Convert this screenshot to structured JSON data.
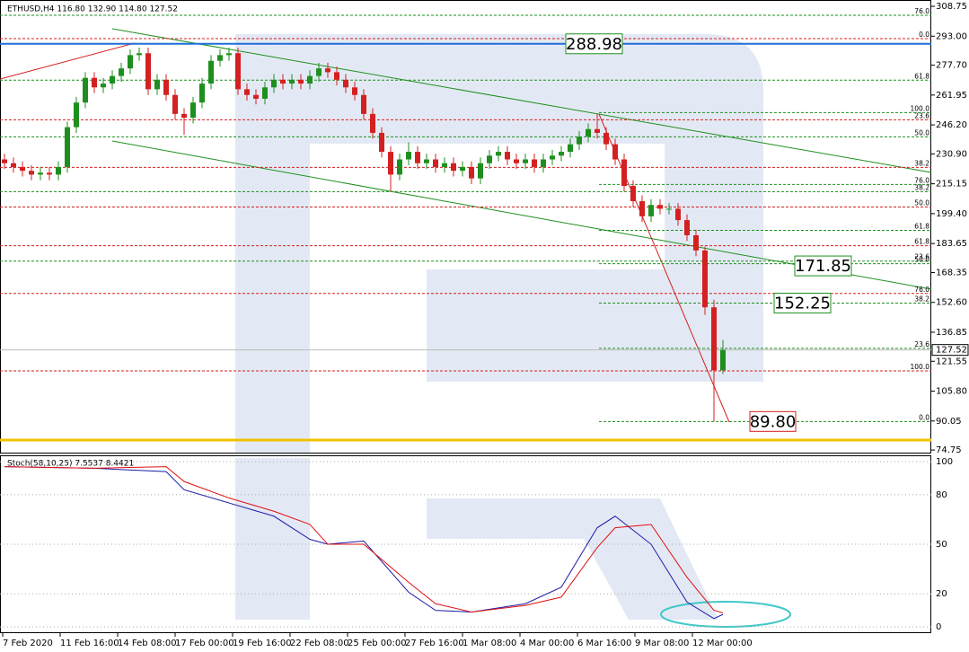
{
  "chart_data": [
    {
      "type": "candlestick",
      "title": "ETHUSD,H4 116.80 132.90 114.80 127.52",
      "up_color": "#1e8f1e",
      "down_color": "#d42020",
      "ylim": [
        72.9,
        311.6
      ],
      "yticks": [
        308.75,
        {
          "value": 293,
          "label": "293.00"
        },
        {
          "value": 277.7,
          "label": "277.70"
        },
        261.95,
        {
          "value": 246.2,
          "label": "246.20"
        },
        {
          "value": 230.9,
          "label": "230.90"
        },
        215.15,
        {
          "value": 199.4,
          "label": "199.40"
        },
        183.65,
        168.35,
        {
          "value": 152.6,
          "label": "152.60"
        },
        136.85,
        121.55,
        {
          "value": 105.8,
          "label": "105.80"
        },
        90.05,
        74.75
      ],
      "last_price": 127.52,
      "ohlc": [
        [
          228,
          231,
          223,
          226
        ],
        [
          226,
          229,
          221,
          224
        ],
        [
          224,
          227,
          219,
          222
        ],
        [
          222,
          225,
          217,
          220
        ],
        [
          220,
          224,
          217,
          221
        ],
        [
          221,
          224,
          217,
          220
        ],
        [
          220,
          227,
          217,
          224
        ],
        [
          224,
          248,
          221,
          245
        ],
        [
          245,
          261,
          242,
          258
        ],
        [
          258,
          274,
          255,
          271
        ],
        [
          271,
          274,
          263,
          266
        ],
        [
          266,
          271,
          263,
          268
        ],
        [
          268,
          275,
          265,
          272
        ],
        [
          272,
          279,
          269,
          276
        ],
        [
          276,
          286,
          273,
          283
        ],
        [
          283,
          287,
          280,
          284
        ],
        [
          284,
          287,
          262,
          265
        ],
        [
          265,
          273,
          262,
          270
        ],
        [
          270,
          273,
          259,
          262
        ],
        [
          262,
          265,
          249,
          252
        ],
        [
          252,
          255,
          241,
          250
        ],
        [
          250,
          261,
          247,
          258
        ],
        [
          258,
          271,
          255,
          268
        ],
        [
          268,
          283,
          265,
          280
        ],
        [
          280,
          286,
          277,
          283
        ],
        [
          283,
          287,
          280,
          284
        ],
        [
          284,
          287,
          262,
          265
        ],
        [
          265,
          268,
          259,
          262
        ],
        [
          262,
          265,
          257,
          260
        ],
        [
          260,
          269,
          257,
          266
        ],
        [
          266,
          273,
          263,
          270
        ],
        [
          270,
          273,
          265,
          268
        ],
        [
          268,
          273,
          265,
          270
        ],
        [
          270,
          273,
          265,
          268
        ],
        [
          268,
          275,
          265,
          272
        ],
        [
          272,
          279,
          269,
          276
        ],
        [
          276,
          279,
          271,
          274
        ],
        [
          274,
          277,
          267,
          270
        ],
        [
          270,
          273,
          263,
          266
        ],
        [
          266,
          269,
          259,
          262
        ],
        [
          262,
          265,
          249,
          252
        ],
        [
          252,
          255,
          239,
          242
        ],
        [
          242,
          245,
          229,
          232
        ],
        [
          232,
          235,
          211,
          220
        ],
        [
          220,
          231,
          217,
          228
        ],
        [
          228,
          237,
          225,
          232
        ],
        [
          232,
          235,
          223,
          226
        ],
        [
          226,
          231,
          223,
          228
        ],
        [
          228,
          231,
          221,
          224
        ],
        [
          224,
          229,
          221,
          226
        ],
        [
          226,
          229,
          219,
          222
        ],
        [
          222,
          227,
          219,
          224
        ],
        [
          224,
          227,
          215,
          218
        ],
        [
          218,
          229,
          215,
          226
        ],
        [
          226,
          233,
          223,
          230
        ],
        [
          230,
          235,
          227,
          232
        ],
        [
          232,
          235,
          225,
          228
        ],
        [
          228,
          231,
          223,
          226
        ],
        [
          226,
          231,
          223,
          228
        ],
        [
          228,
          231,
          221,
          224
        ],
        [
          224,
          231,
          221,
          228
        ],
        [
          228,
          233,
          225,
          230
        ],
        [
          230,
          235,
          227,
          232
        ],
        [
          232,
          239,
          229,
          236
        ],
        [
          236,
          243,
          233,
          240
        ],
        [
          240,
          247,
          237,
          244
        ],
        [
          244,
          252,
          239,
          242
        ],
        [
          242,
          245,
          233,
          236
        ],
        [
          236,
          239,
          225,
          228
        ],
        [
          228,
          231,
          211,
          214
        ],
        [
          214,
          217,
          203,
          206
        ],
        [
          206,
          209,
          195,
          198
        ],
        [
          198,
          207,
          195,
          204
        ],
        [
          204,
          207,
          199,
          202
        ],
        [
          202,
          205,
          199,
          202
        ],
        [
          202,
          205,
          193,
          196
        ],
        [
          196,
          199,
          185,
          188
        ],
        [
          188,
          191,
          177,
          180
        ],
        [
          180,
          182,
          146,
          150
        ],
        [
          150,
          154,
          89.8,
          116.8
        ],
        [
          116.8,
          132.9,
          114.8,
          127.52
        ]
      ],
      "fib_sets": [
        {
          "color": "#d42020",
          "span": "full",
          "levels": [
            {
              "label": "0.0",
              "price": 291.7
            },
            {
              "label": "23.6",
              "price": 248.9
            },
            {
              "label": "38.2",
              "price": 223.8
            },
            {
              "label": "50.0",
              "price": 202.9
            },
            {
              "label": "61.8",
              "price": 182.5
            },
            {
              "label": "76.0",
              "price": 157.3
            },
            {
              "label": "100.0",
              "price": 116.5
            }
          ]
        },
        {
          "color": "#1e8f1e",
          "span": "full",
          "levels": [
            {
              "label": "76.0",
              "price": 304.0
            },
            {
              "label": "61.8",
              "price": 269.8
            },
            {
              "label": "50.0",
              "price": 239.9
            },
            {
              "label": "38.2",
              "price": 211.0
            },
            {
              "label": "23.6",
              "price": 174.4
            }
          ]
        },
        {
          "color": "#1e8f1e",
          "span": "right",
          "levels": [
            {
              "label": "100.0",
              "price": 252.7
            },
            {
              "label": "76.0",
              "price": 214.8
            },
            {
              "label": "61.8",
              "price": 190.6
            },
            {
              "label": "50.0",
              "price": 173.0
            },
            {
              "label": "38.2",
              "price": 152.25
            },
            {
              "label": "23.6",
              "price": 128.4
            },
            {
              "label": "0.0",
              "price": 89.8
            }
          ]
        }
      ],
      "price_tags": [
        {
          "value": 288.98,
          "color": "#1e8f1e"
        },
        {
          "value": 171.85,
          "color": "#1e8f1e"
        },
        {
          "value": 152.25,
          "color": "#1e8f1e"
        },
        {
          "value": 89.8,
          "label": "89.80",
          "color": "#d42020"
        }
      ]
    },
    {
      "type": "line",
      "title": "Stoch(58,10,25) 7.5537 8.4421",
      "x": [
        0,
        10,
        18,
        20,
        25,
        30,
        34,
        36,
        40,
        45,
        48,
        52,
        58,
        62,
        66,
        68,
        72,
        76,
        79,
        80
      ],
      "series": [
        {
          "color": "#1a1aa8",
          "values": [
            97,
            96,
            94,
            83,
            75,
            67,
            53,
            50,
            52,
            21,
            10,
            9,
            14,
            24,
            60,
            67,
            50,
            15,
            5,
            7.5537
          ]
        },
        {
          "color": "#e01010",
          "values": [
            97,
            96,
            97,
            88,
            78,
            70,
            62,
            50,
            50,
            27,
            14,
            9,
            13,
            18,
            48,
            60,
            62,
            30,
            10,
            8.4421
          ]
        }
      ],
      "ylim": [
        -3.8,
        103.3
      ],
      "yticks": [
        0,
        20,
        50,
        80,
        100
      ],
      "x_tick_labels": [
        "7 Feb 2020",
        "11 Feb 16:00",
        "14 Feb 08:00",
        "17 Feb 00:00",
        "19 Feb 16:00",
        "22 Feb 08:00",
        "25 Feb 00:00",
        "27 Feb 16:00",
        "1 Mar 08:00",
        "4 Mar 00:00",
        "6 Mar 16:00",
        "9 Mar 08:00",
        "12 Mar 00:00"
      ]
    }
  ]
}
